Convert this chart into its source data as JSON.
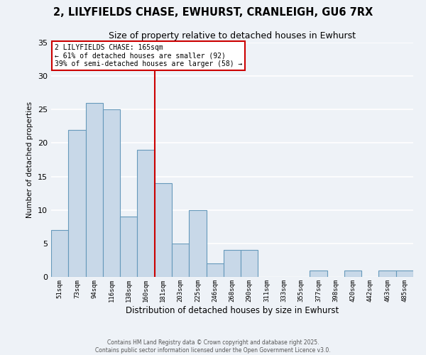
{
  "title": "2, LILYFIELDS CHASE, EWHURST, CRANLEIGH, GU6 7RX",
  "subtitle": "Size of property relative to detached houses in Ewhurst",
  "xlabel": "Distribution of detached houses by size in Ewhurst",
  "ylabel": "Number of detached properties",
  "bar_labels": [
    "51sqm",
    "73sqm",
    "94sqm",
    "116sqm",
    "138sqm",
    "160sqm",
    "181sqm",
    "203sqm",
    "225sqm",
    "246sqm",
    "268sqm",
    "290sqm",
    "311sqm",
    "333sqm",
    "355sqm",
    "377sqm",
    "398sqm",
    "420sqm",
    "442sqm",
    "463sqm",
    "485sqm"
  ],
  "bar_values": [
    7,
    22,
    26,
    25,
    9,
    19,
    14,
    5,
    10,
    2,
    4,
    4,
    0,
    0,
    0,
    1,
    0,
    1,
    0,
    1,
    1
  ],
  "bar_color": "#c8d8e8",
  "bar_edgecolor": "#6699bb",
  "vline_x": 5.5,
  "vline_color": "#cc0000",
  "annotation_title": "2 LILYFIELDS CHASE: 165sqm",
  "annotation_line1": "← 61% of detached houses are smaller (92)",
  "annotation_line2": "39% of semi-detached houses are larger (58) →",
  "annotation_box_facecolor": "#ffffff",
  "annotation_box_edgecolor": "#cc0000",
  "ylim": [
    0,
    35
  ],
  "yticks": [
    0,
    5,
    10,
    15,
    20,
    25,
    30,
    35
  ],
  "background_color": "#eef2f7",
  "grid_color": "#ffffff",
  "footer1": "Contains HM Land Registry data © Crown copyright and database right 2025.",
  "footer2": "Contains public sector information licensed under the Open Government Licence v3.0."
}
